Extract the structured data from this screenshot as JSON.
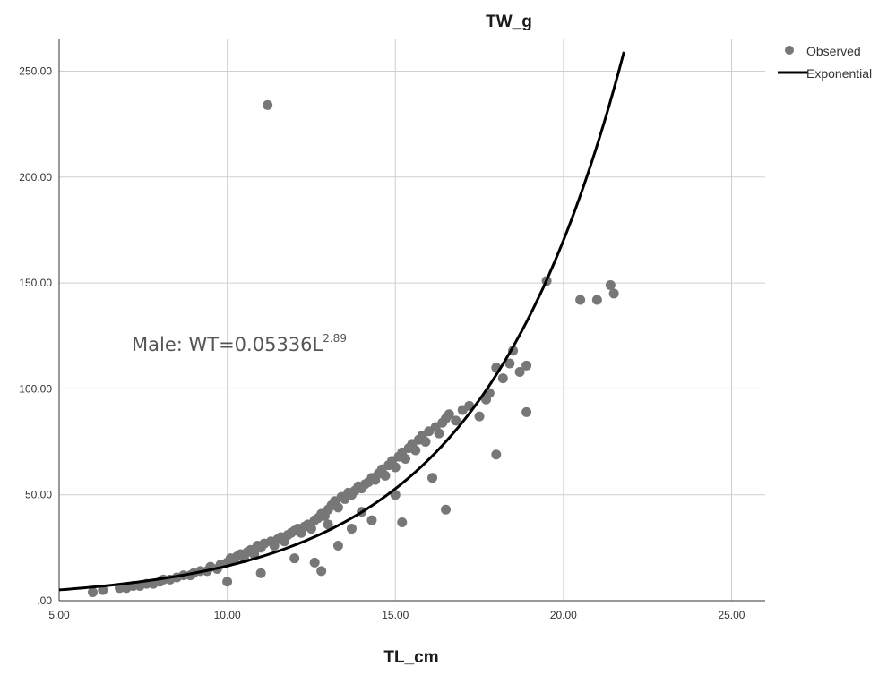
{
  "chart_data": {
    "type": "scatter",
    "title": "TW_g",
    "xlabel": "TL_cm",
    "ylabel": "",
    "xlim": [
      5,
      26
    ],
    "ylim": [
      0,
      265
    ],
    "x_ticks": [
      "5.00",
      "10.00",
      "15.00",
      "20.00",
      "25.00"
    ],
    "y_ticks": [
      ".00",
      "50.00",
      "100.00",
      "150.00",
      "200.00",
      "250.00"
    ],
    "grid": true,
    "legend_position": "top-right",
    "annotation": {
      "text": "Male: WT=0.05336L",
      "superscript": "2.89"
    },
    "colors": {
      "observed": "#777777",
      "fit": "#000000",
      "grid": "#cfcfcf"
    },
    "series": [
      {
        "name": "Observed",
        "kind": "scatter",
        "points": [
          [
            6.0,
            4
          ],
          [
            6.3,
            5
          ],
          [
            6.8,
            6
          ],
          [
            7.0,
            6
          ],
          [
            7.2,
            7
          ],
          [
            7.4,
            7
          ],
          [
            7.6,
            8
          ],
          [
            7.8,
            8
          ],
          [
            8.0,
            9
          ],
          [
            8.1,
            10
          ],
          [
            8.3,
            10
          ],
          [
            8.5,
            11
          ],
          [
            8.7,
            12
          ],
          [
            8.9,
            12
          ],
          [
            9.0,
            13
          ],
          [
            9.2,
            14
          ],
          [
            9.4,
            14
          ],
          [
            9.5,
            16
          ],
          [
            9.7,
            15
          ],
          [
            9.8,
            17
          ],
          [
            10.0,
            18
          ],
          [
            10.0,
            9
          ],
          [
            10.1,
            20
          ],
          [
            10.2,
            19
          ],
          [
            10.3,
            21
          ],
          [
            10.4,
            22
          ],
          [
            10.5,
            20
          ],
          [
            10.6,
            23
          ],
          [
            10.7,
            24
          ],
          [
            10.8,
            22
          ],
          [
            10.9,
            26
          ],
          [
            11.0,
            25
          ],
          [
            11.0,
            13
          ],
          [
            11.1,
            27
          ],
          [
            11.2,
            234
          ],
          [
            11.3,
            28
          ],
          [
            11.4,
            26
          ],
          [
            11.5,
            29
          ],
          [
            11.6,
            30
          ],
          [
            11.7,
            28
          ],
          [
            11.8,
            31
          ],
          [
            11.9,
            32
          ],
          [
            12.0,
            33
          ],
          [
            12.0,
            20
          ],
          [
            12.1,
            34
          ],
          [
            12.2,
            32
          ],
          [
            12.3,
            35
          ],
          [
            12.4,
            36
          ],
          [
            12.5,
            34
          ],
          [
            12.6,
            38
          ],
          [
            12.6,
            18
          ],
          [
            12.7,
            39
          ],
          [
            12.8,
            41
          ],
          [
            12.8,
            14
          ],
          [
            12.9,
            40
          ],
          [
            13.0,
            43
          ],
          [
            13.0,
            36
          ],
          [
            13.1,
            45
          ],
          [
            13.2,
            47
          ],
          [
            13.3,
            44
          ],
          [
            13.3,
            26
          ],
          [
            13.4,
            49
          ],
          [
            13.5,
            48
          ],
          [
            13.6,
            51
          ],
          [
            13.7,
            50
          ],
          [
            13.7,
            34
          ],
          [
            13.8,
            52
          ],
          [
            13.9,
            54
          ],
          [
            14.0,
            53
          ],
          [
            14.0,
            42
          ],
          [
            14.1,
            55
          ],
          [
            14.2,
            56
          ],
          [
            14.3,
            58
          ],
          [
            14.3,
            38
          ],
          [
            14.4,
            57
          ],
          [
            14.5,
            60
          ],
          [
            14.6,
            62
          ],
          [
            14.7,
            59
          ],
          [
            14.8,
            64
          ],
          [
            14.9,
            66
          ],
          [
            15.0,
            63
          ],
          [
            15.0,
            50
          ],
          [
            15.1,
            68
          ],
          [
            15.2,
            70
          ],
          [
            15.2,
            37
          ],
          [
            15.3,
            67
          ],
          [
            15.4,
            72
          ],
          [
            15.5,
            74
          ],
          [
            15.6,
            71
          ],
          [
            15.7,
            76
          ],
          [
            15.8,
            78
          ],
          [
            15.9,
            75
          ],
          [
            16.0,
            80
          ],
          [
            16.1,
            58
          ],
          [
            16.2,
            82
          ],
          [
            16.3,
            79
          ],
          [
            16.4,
            84
          ],
          [
            16.5,
            86
          ],
          [
            16.5,
            43
          ],
          [
            16.6,
            88
          ],
          [
            16.8,
            85
          ],
          [
            17.0,
            90
          ],
          [
            17.2,
            92
          ],
          [
            17.5,
            87
          ],
          [
            17.7,
            95
          ],
          [
            17.8,
            98
          ],
          [
            18.0,
            110
          ],
          [
            18.0,
            69
          ],
          [
            18.2,
            105
          ],
          [
            18.4,
            112
          ],
          [
            18.5,
            118
          ],
          [
            18.7,
            108
          ],
          [
            18.9,
            111
          ],
          [
            18.9,
            89
          ],
          [
            19.5,
            151
          ],
          [
            20.5,
            142
          ],
          [
            21.0,
            142
          ],
          [
            21.4,
            149
          ],
          [
            21.5,
            145
          ]
        ]
      },
      {
        "name": "Exponential",
        "kind": "line",
        "curve": {
          "a": 1.585,
          "b": 0.2338,
          "x_start": 5.0,
          "x_end": 21.8
        }
      }
    ]
  }
}
